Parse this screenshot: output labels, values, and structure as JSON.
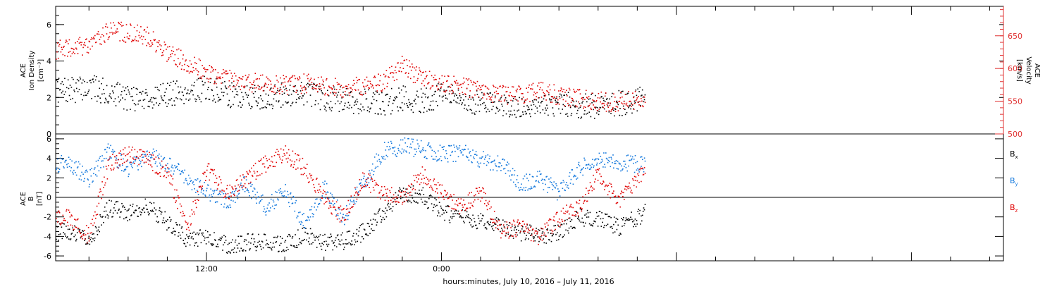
{
  "x_axis_label": "hours:minutes, July 10, 2016 – July 11, 2016",
  "x_ticks": [
    "12:00",
    "0:00"
  ],
  "colors": {
    "black": "#000000",
    "red": "#e00000",
    "blue": "#1177dd",
    "axis_red": "#e03030"
  },
  "panels": {
    "top": {
      "left_label_line1": "ACE",
      "left_label_line2": "Ion Density",
      "left_label_line3": "[cm⁻³]",
      "right_label_line1": "ACE",
      "right_label_line2": "Velocity",
      "right_label_line3": "[km/s]",
      "left_ticks": [
        "0",
        "2",
        "4",
        "6"
      ],
      "right_ticks": [
        "500",
        "550",
        "600",
        "650"
      ]
    },
    "bottom": {
      "left_label_line1": "ACE",
      "left_label_line2": "B",
      "left_label_line3": "[nT]",
      "ticks": [
        "-6",
        "-4",
        "-2",
        "0",
        "2",
        "4",
        "6"
      ],
      "legend": [
        {
          "label": "B",
          "sub": "x",
          "color": "#000000"
        },
        {
          "label": "B",
          "sub": "y",
          "color": "#1177dd"
        },
        {
          "label": "B",
          "sub": "z",
          "color": "#e00000"
        }
      ]
    }
  },
  "chart_data": [
    {
      "type": "scatter",
      "title": "",
      "x_unit": "hours since 00:00 July 10, 2016",
      "xlim": [
        4.3,
        52.7
      ],
      "series": [
        {
          "name": "Ion Density",
          "axis": "left",
          "ylim": [
            0,
            7
          ],
          "color": "#000000",
          "x": [
            5,
            6,
            7,
            8,
            9,
            10,
            11,
            12,
            13,
            14,
            15,
            16,
            17,
            18,
            19,
            20,
            21,
            22,
            23,
            24,
            25,
            26,
            27,
            28,
            29,
            30,
            31,
            32,
            33,
            34.4
          ],
          "values": [
            2.4,
            2.6,
            2.3,
            2.0,
            2.0,
            2.2,
            2.4,
            2.5,
            2.2,
            2.1,
            2.0,
            2.2,
            2.3,
            2.0,
            1.9,
            1.8,
            1.7,
            2.0,
            1.8,
            2.2,
            1.9,
            1.7,
            1.7,
            1.5,
            1.6,
            1.7,
            1.5,
            1.6,
            1.7,
            2.0
          ]
        },
        {
          "name": "Velocity",
          "axis": "right",
          "ylim": [
            500,
            695
          ],
          "color": "#e00000",
          "x": [
            5,
            6,
            7,
            8,
            9,
            10,
            11,
            12,
            13,
            14,
            15,
            16,
            17,
            18,
            19,
            20,
            21,
            22,
            23,
            24,
            25,
            26,
            27,
            28,
            29,
            30,
            31,
            32,
            33,
            34.4
          ],
          "values": [
            630,
            640,
            660,
            655,
            650,
            625,
            610,
            595,
            585,
            580,
            578,
            575,
            578,
            575,
            570,
            575,
            580,
            605,
            585,
            578,
            575,
            565,
            560,
            560,
            565,
            560,
            555,
            550,
            550,
            555
          ]
        }
      ]
    },
    {
      "type": "scatter",
      "title": "",
      "x_unit": "hours since 00:00 July 10, 2016",
      "xlim": [
        4.3,
        52.7
      ],
      "ylim": [
        -6.5,
        6.5
      ],
      "series": [
        {
          "name": "Bx",
          "color": "#000000",
          "x": [
            5,
            6,
            7,
            8,
            9,
            10,
            11,
            12,
            13,
            14,
            15,
            16,
            17,
            18,
            19,
            20,
            21,
            22,
            23,
            24,
            25,
            26,
            27,
            28,
            29,
            30,
            31,
            32,
            33,
            34.4
          ],
          "values": [
            -3.5,
            -4.5,
            -1.0,
            -1.5,
            -0.8,
            -2.5,
            -4.2,
            -4.0,
            -4.8,
            -4.6,
            -4.4,
            -4.8,
            -3.8,
            -4.6,
            -4.4,
            -3.5,
            -1.5,
            0.5,
            0.2,
            -1.5,
            -2.0,
            -2.5,
            -3.0,
            -3.5,
            -3.8,
            -3.6,
            -2.0,
            -2.2,
            -3.0,
            -1.5
          ]
        },
        {
          "name": "By",
          "color": "#1177dd",
          "x": [
            5,
            6,
            7,
            8,
            9,
            10,
            11,
            12,
            13,
            14,
            15,
            16,
            17,
            18,
            19,
            20,
            21,
            22,
            23,
            24,
            25,
            26,
            27,
            28,
            29,
            30,
            31,
            32,
            33,
            34.4
          ],
          "values": [
            3.5,
            2.0,
            4.8,
            3.0,
            4.6,
            3.5,
            2.0,
            0.5,
            -0.5,
            1.5,
            -1.0,
            0.5,
            -2.5,
            1.0,
            -2.0,
            1.5,
            4.8,
            5.3,
            5.0,
            4.5,
            4.6,
            4.0,
            3.5,
            1.5,
            2.0,
            0.5,
            3.0,
            4.0,
            3.5,
            3.5
          ]
        },
        {
          "name": "Bz",
          "color": "#e00000",
          "x": [
            5,
            6,
            7,
            8,
            9,
            10,
            11,
            12,
            13,
            14,
            15,
            16,
            17,
            18,
            19,
            20,
            21,
            22,
            23,
            24,
            25,
            26,
            27,
            28,
            29,
            30,
            31,
            32,
            33,
            34.4
          ],
          "values": [
            -2.0,
            -4.0,
            3.5,
            4.5,
            4.0,
            2.5,
            -3.0,
            3.0,
            0.5,
            2.0,
            3.5,
            4.5,
            3.0,
            0.0,
            -2.0,
            2.0,
            0.5,
            0.0,
            2.5,
            0.5,
            -1.0,
            0.5,
            -3.5,
            -3.0,
            -4.0,
            -2.0,
            -1.0,
            2.5,
            -0.5,
            3.0
          ]
        }
      ]
    }
  ]
}
